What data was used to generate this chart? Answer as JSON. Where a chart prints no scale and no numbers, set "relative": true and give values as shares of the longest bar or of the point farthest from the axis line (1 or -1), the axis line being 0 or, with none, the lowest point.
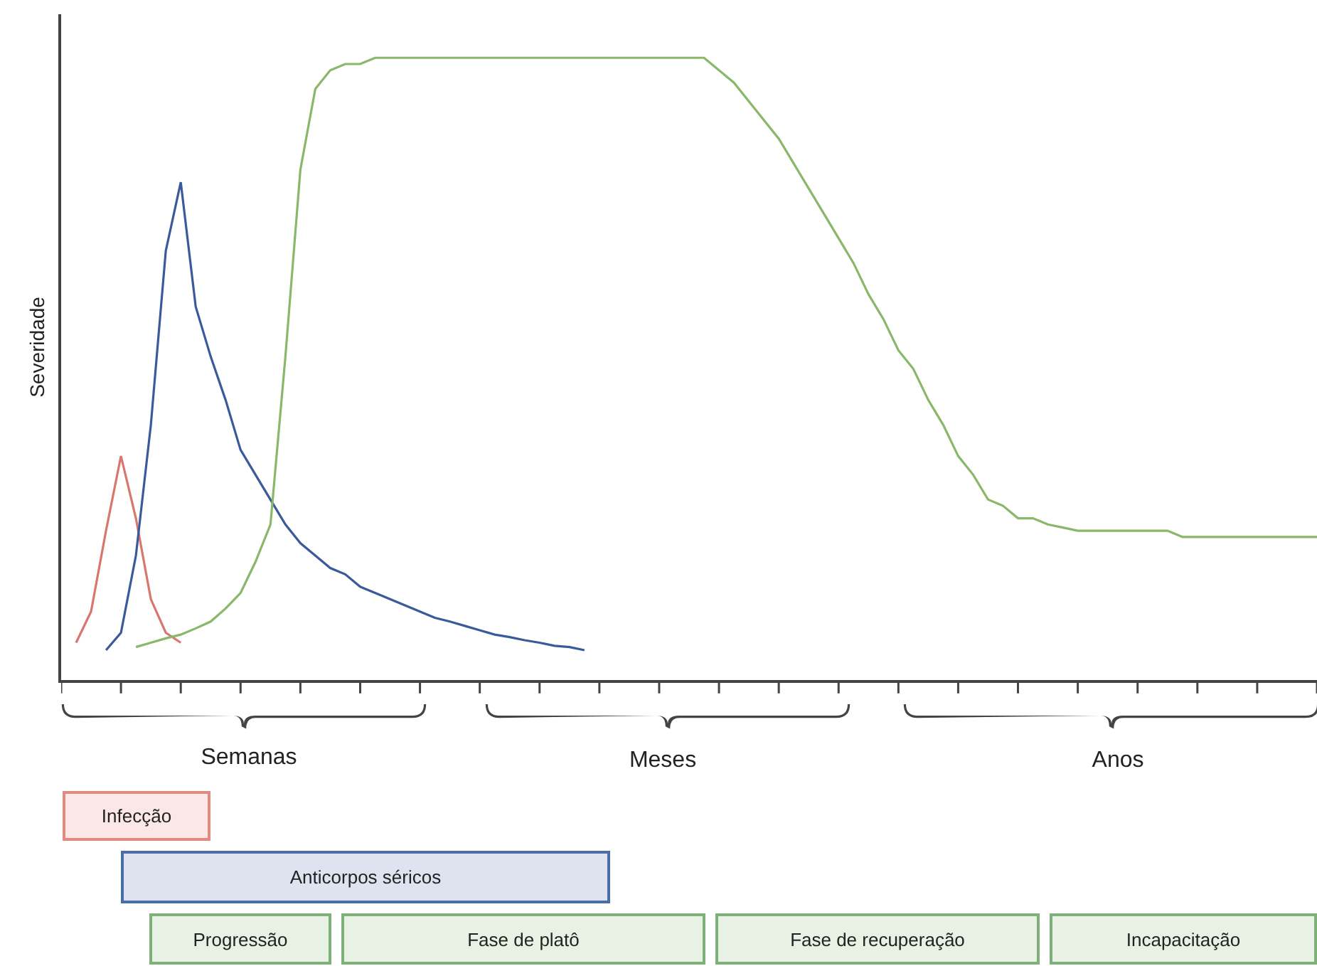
{
  "chart_data": {
    "type": "line",
    "relative": true,
    "ylabel": "Severidade",
    "marker": "none",
    "line_style": "solid",
    "categories": [
      null,
      null,
      null,
      null,
      null,
      null,
      null,
      null,
      null,
      null,
      null,
      null,
      null,
      null,
      null,
      null,
      null,
      null,
      null,
      null,
      null,
      null,
      null,
      null,
      null,
      null,
      null,
      null,
      null,
      null,
      null,
      null,
      null,
      null,
      null,
      null,
      null,
      null,
      null,
      null,
      null,
      null,
      null,
      null,
      null,
      null,
      null,
      null,
      null,
      null,
      null,
      null,
      null,
      null,
      null,
      null,
      null,
      null,
      null,
      null,
      null,
      null,
      null,
      null,
      null,
      null,
      null,
      null,
      null,
      null,
      null,
      null,
      null,
      null,
      null,
      null,
      null,
      null,
      null,
      null,
      null,
      null,
      null,
      null,
      null
    ],
    "series": [
      {
        "color": "#d9776f",
        "values": [
          null,
          0.06,
          0.11,
          0.24,
          0.36,
          0.26,
          0.13,
          0.076,
          0.06,
          null,
          null,
          null,
          null,
          null,
          null,
          null,
          null,
          null,
          null,
          null,
          null,
          null,
          null,
          null,
          null,
          null,
          null,
          null,
          null,
          null,
          null,
          null,
          null,
          null,
          null,
          null,
          null,
          null,
          null,
          null,
          null,
          null,
          null,
          null,
          null,
          null,
          null,
          null,
          null,
          null,
          null,
          null,
          null,
          null,
          null,
          null,
          null,
          null,
          null,
          null,
          null,
          null,
          null,
          null,
          null,
          null,
          null,
          null,
          null,
          null,
          null,
          null,
          null,
          null,
          null,
          null,
          null,
          null,
          null,
          null,
          null,
          null,
          null,
          null,
          null
        ]
      },
      {
        "color": "#3a5a9a",
        "values": [
          null,
          null,
          null,
          0.048,
          0.076,
          0.2,
          0.41,
          0.69,
          0.8,
          0.6,
          0.52,
          0.45,
          0.37,
          0.33,
          0.29,
          0.25,
          0.22,
          0.2,
          0.18,
          0.17,
          0.15,
          0.14,
          0.13,
          0.12,
          0.11,
          0.1,
          0.094,
          0.087,
          0.08,
          0.073,
          0.069,
          0.064,
          0.06,
          0.055,
          0.053,
          0.048,
          null,
          null,
          null,
          null,
          null,
          null,
          null,
          null,
          null,
          null,
          null,
          null,
          null,
          null,
          null,
          null,
          null,
          null,
          null,
          null,
          null,
          null,
          null,
          null,
          null,
          null,
          null,
          null,
          null,
          null,
          null,
          null,
          null,
          null,
          null,
          null,
          null,
          null,
          null,
          null,
          null,
          null,
          null,
          null,
          null,
          null,
          null,
          null,
          null
        ]
      },
      {
        "color": "#8ab86a",
        "values": [
          null,
          null,
          null,
          null,
          null,
          0.053,
          0.06,
          0.067,
          0.073,
          0.083,
          0.094,
          0.115,
          0.14,
          0.19,
          0.25,
          0.52,
          0.82,
          0.95,
          0.98,
          0.99,
          0.99,
          1,
          1,
          1,
          1,
          1,
          1,
          1,
          1,
          1,
          1,
          1,
          1,
          1,
          1,
          1,
          1,
          1,
          1,
          1,
          1,
          1,
          1,
          1,
          0.98,
          0.96,
          0.93,
          0.9,
          0.87,
          0.83,
          0.79,
          0.75,
          0.71,
          0.67,
          0.62,
          0.58,
          0.53,
          0.5,
          0.45,
          0.41,
          0.36,
          0.33,
          0.29,
          0.28,
          0.26,
          0.26,
          0.25,
          0.245,
          0.24,
          0.24,
          0.24,
          0.24,
          0.24,
          0.24,
          0.24,
          0.23,
          0.23,
          0.23,
          0.23,
          0.23,
          0.23,
          0.23,
          0.23,
          0.23,
          0.23
        ]
      }
    ],
    "annotations": [
      "Semanas",
      "Meses",
      "Anos",
      "Infecção",
      "Anticorpos séricos",
      "Progressão",
      "Fase de platô",
      "Fase de recuperação",
      "Incapacitação"
    ]
  }
}
